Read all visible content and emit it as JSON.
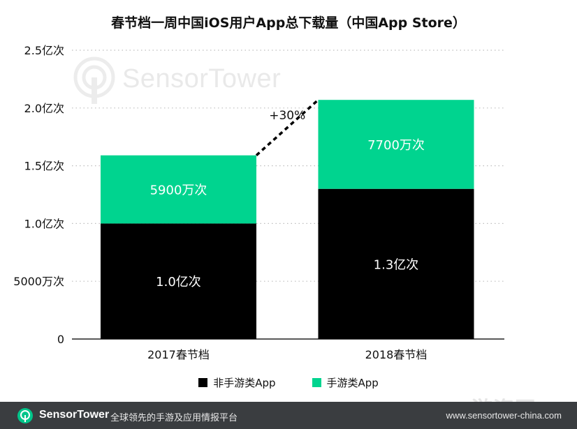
{
  "chart_data": {
    "type": "bar",
    "stacked": true,
    "title": "春节档一周中国iOS用户App总下载量（中国App Store）",
    "categories": [
      "2017春节档",
      "2018春节档"
    ],
    "series": [
      {
        "name": "非手游类App",
        "color": "#000000",
        "values": [
          1.0,
          1.3
        ],
        "labels": [
          "1.0亿次",
          "1.3亿次"
        ]
      },
      {
        "name": "手游类App",
        "color": "#00d48f",
        "values": [
          0.59,
          0.77
        ],
        "labels": [
          "5900万次",
          "7700万次"
        ]
      }
    ],
    "yticks": [
      {
        "value": 0,
        "label": "0"
      },
      {
        "value": 0.5,
        "label": "5000万次"
      },
      {
        "value": 1.0,
        "label": "1.0亿次"
      },
      {
        "value": 1.5,
        "label": "1.5亿次"
      },
      {
        "value": 2.0,
        "label": "2.0亿次"
      },
      {
        "value": 2.5,
        "label": "2.5亿次"
      }
    ],
    "ylim": [
      0,
      2.5
    ],
    "grid": true,
    "legend_position": "bottom",
    "annotation": "+30%"
  },
  "watermark": {
    "brand": "SensorTower",
    "site": "GameRes 游资网"
  },
  "footer": {
    "brand": "SensorTower",
    "slogan": "全球领先的手游及应用情报平台",
    "url": "www.sensortower-china.com"
  }
}
